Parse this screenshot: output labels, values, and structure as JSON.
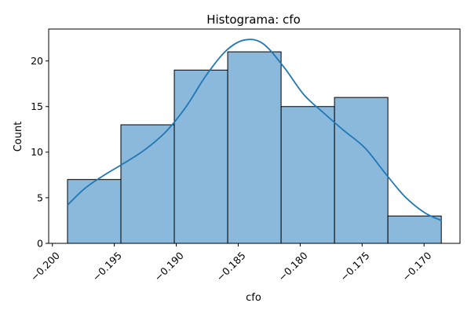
{
  "chart_data": {
    "type": "bar",
    "title": "Histograma: cfo",
    "xlabel": "cfo",
    "ylabel": "Count",
    "bins": [
      {
        "left": -0.19878,
        "right": -0.19447,
        "count": 7
      },
      {
        "left": -0.19447,
        "right": -0.19016,
        "count": 13
      },
      {
        "left": -0.19016,
        "right": -0.18585,
        "count": 19
      },
      {
        "left": -0.18585,
        "right": -0.18154,
        "count": 21
      },
      {
        "left": -0.18154,
        "right": -0.17723,
        "count": 15
      },
      {
        "left": -0.17723,
        "right": -0.17292,
        "count": 16
      },
      {
        "left": -0.17292,
        "right": -0.16861,
        "count": 3
      }
    ],
    "kde": {
      "x": [
        -0.19878,
        -0.1974,
        -0.1958,
        -0.1942,
        -0.1925,
        -0.1908,
        -0.1892,
        -0.1876,
        -0.186,
        -0.1845,
        -0.183,
        -0.1813,
        -0.1797,
        -0.1781,
        -0.1765,
        -0.1748,
        -0.1732,
        -0.1716,
        -0.17,
        -0.1686
      ],
      "y": [
        4.2,
        6.0,
        7.5,
        8.8,
        10.3,
        12.3,
        15.0,
        18.4,
        21.1,
        22.3,
        21.9,
        19.3,
        16.3,
        14.3,
        12.4,
        10.5,
        7.8,
        5.2,
        3.4,
        2.5
      ]
    },
    "xlim": [
      -0.2003,
      -0.1671
    ],
    "ylim": [
      0,
      23.5
    ],
    "xticks": [
      -0.2,
      -0.195,
      -0.19,
      -0.185,
      -0.18,
      -0.175,
      -0.17
    ],
    "xtick_labels": [
      "−0.200",
      "−0.195",
      "−0.190",
      "−0.185",
      "−0.180",
      "−0.175",
      "−0.170"
    ],
    "yticks": [
      0,
      5,
      10,
      15,
      20
    ],
    "ytick_labels": [
      "0",
      "5",
      "10",
      "15",
      "20"
    ],
    "colors": {
      "bar_fill": "#8bb9dc",
      "bar_edge": "#000000",
      "kde_line": "#1f77b4"
    },
    "grid": false
  }
}
